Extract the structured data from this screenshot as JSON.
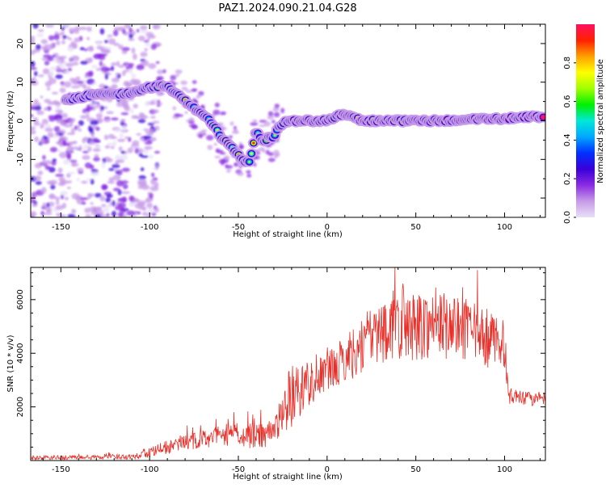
{
  "title": "PAZ1.2024.090.21.04.G28",
  "colors": {
    "snr_line": "#e8302a",
    "colormap": [
      "#e8e0f8",
      "#c79be8",
      "#8a2be2",
      "#3a00d8",
      "#0030ff",
      "#00a8ff",
      "#00e8d8",
      "#00f000",
      "#a0ff00",
      "#ffff00",
      "#ffa000",
      "#ff2000",
      "#ff1060"
    ]
  },
  "chart_data": [
    {
      "type": "heatmap",
      "title": "",
      "xlabel": "Height of straight line (km)",
      "ylabel": "Frequency (Hz)",
      "xlim": [
        -167,
        123
      ],
      "ylim": [
        -25,
        25
      ],
      "xticks": [
        -150,
        -100,
        -50,
        0,
        50,
        100
      ],
      "yticks": [
        -20,
        -10,
        0,
        10,
        20
      ],
      "colorbar": {
        "label": "Normalized spectral amplitude",
        "range": [
          0,
          1
        ],
        "ticks": [
          "0.0",
          "0.2",
          "0.4",
          "0.6",
          "0.8"
        ]
      },
      "ridge": {
        "x": [
          -145,
          -135,
          -125,
          -112,
          -104,
          -97,
          -90,
          -82,
          -74,
          -66,
          -60,
          -54,
          -48,
          -44,
          -40,
          -36,
          -30,
          -26,
          -22,
          -16,
          -10,
          -4,
          0,
          4,
          8,
          12,
          20,
          30,
          40,
          50,
          60,
          70,
          80,
          90,
          100,
          110,
          123
        ],
        "y": [
          5.5,
          6.5,
          7,
          7,
          8,
          9,
          9,
          6,
          3,
          0,
          -4,
          -7,
          -10,
          -11,
          -3,
          -5,
          -4,
          -1,
          0,
          0,
          0,
          0,
          0,
          1,
          1.5,
          1.5,
          0,
          0,
          0,
          0,
          0,
          0,
          0.5,
          0.5,
          0.5,
          1,
          1
        ]
      }
    },
    {
      "type": "line",
      "title": "",
      "xlabel": "Height of straight line (km)",
      "ylabel": "SNR (10 * v/v)",
      "xlim": [
        -167,
        123
      ],
      "ylim": [
        0,
        7200
      ],
      "xticks": [
        -150,
        -100,
        -50,
        0,
        50,
        100
      ],
      "yticks": [
        2000,
        4000,
        6000
      ],
      "envelope": {
        "x": [
          -167,
          -150,
          -130,
          -110,
          -100,
          -90,
          -80,
          -70,
          -60,
          -50,
          -40,
          -35,
          -30,
          -25,
          -20,
          -15,
          -10,
          -5,
          0,
          5,
          10,
          20,
          30,
          40,
          50,
          60,
          70,
          80,
          90,
          100,
          102,
          105,
          110,
          115,
          123
        ],
        "y": [
          100,
          110,
          120,
          150,
          300,
          500,
          650,
          800,
          900,
          1000,
          900,
          1000,
          1100,
          1800,
          2400,
          2700,
          2900,
          3100,
          3300,
          3500,
          3800,
          4300,
          4800,
          5100,
          5000,
          5100,
          5000,
          4800,
          4500,
          4400,
          2400,
          2400,
          2300,
          2300,
          2300
        ]
      },
      "noise_amp": {
        "x": [
          -167,
          -110,
          -100,
          -60,
          -40,
          -30,
          -25,
          -20,
          -10,
          0,
          10,
          30,
          40,
          50,
          80,
          100,
          102,
          123
        ],
        "y": [
          80,
          100,
          200,
          400,
          500,
          500,
          900,
          1200,
          900,
          700,
          900,
          1200,
          1400,
          1300,
          1200,
          900,
          300,
          250
        ]
      }
    }
  ]
}
